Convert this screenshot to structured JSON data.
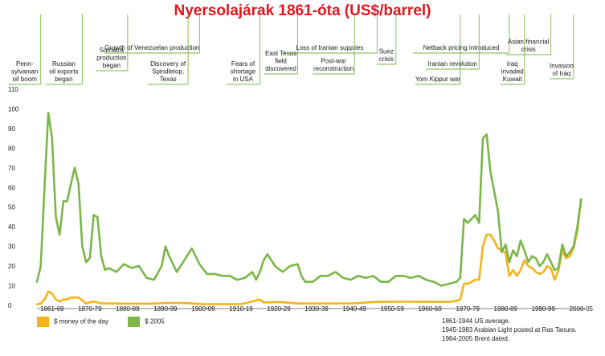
{
  "title": "Nyersolajárak 1861-óta (US$/barrel)",
  "colors": {
    "title": "#e2161c",
    "money_of_day": "#f5b21b",
    "usd_2005": "#7ab648",
    "annotation_line": "#7ab648"
  },
  "legend": [
    "$ money of the day",
    "$ 2005"
  ],
  "notes": [
    "1861-1944 US average.",
    "1945-1983 Arabian Light posted at Ras Tanura.",
    "1984-2005 Brent dated."
  ],
  "chart_data": {
    "type": "line",
    "title": "Nyersolajárak 1861-óta (US$/barrel)",
    "xlabel": "",
    "ylabel": "",
    "xlim": [
      1861,
      2006
    ],
    "ylim": [
      0,
      110
    ],
    "y_ticks": [
      0,
      10,
      20,
      30,
      40,
      50,
      60,
      70,
      80,
      90,
      100,
      110
    ],
    "x_tick_labels": [
      "1861-69",
      "1870-79",
      "1880-89",
      "1890-99",
      "1900-09",
      "1910-19",
      "1920-29",
      "1930-39",
      "1940-49",
      "1950-59",
      "1960-69",
      "1970-79",
      "1980-89",
      "1990-99",
      "2000-05"
    ],
    "grid": false,
    "legend_position": "bottom-left",
    "series": [
      {
        "name": "$ money of the day",
        "color": "#f5b21b",
        "x": [
          1861,
          1862,
          1863,
          1864,
          1865,
          1866,
          1867,
          1868,
          1869,
          1870,
          1872,
          1874,
          1876,
          1878,
          1880,
          1885,
          1890,
          1895,
          1900,
          1905,
          1910,
          1915,
          1918,
          1920,
          1921,
          1925,
          1930,
          1935,
          1940,
          1945,
          1950,
          1955,
          1960,
          1965,
          1970,
          1972,
          1973,
          1974,
          1975,
          1976,
          1977,
          1978,
          1979,
          1980,
          1981,
          1982,
          1983,
          1984,
          1985,
          1986,
          1987,
          1988,
          1989,
          1990,
          1991,
          1992,
          1993,
          1994,
          1995,
          1996,
          1997,
          1998,
          1999,
          2000,
          2001,
          2002,
          2003,
          2004,
          2005
        ],
        "y": [
          0.5,
          1,
          3,
          7,
          6,
          3,
          2,
          3,
          3,
          4,
          4,
          1,
          2,
          1,
          1,
          0.9,
          0.8,
          1.2,
          1.2,
          0.6,
          0.6,
          0.6,
          2,
          3,
          1.5,
          1.7,
          1,
          1,
          1,
          1.05,
          1.7,
          1.9,
          1.9,
          1.8,
          1.8,
          2.3,
          3,
          11,
          11,
          12,
          13,
          13,
          30,
          36,
          36,
          33,
          29,
          28,
          27,
          15,
          18,
          15,
          18,
          23,
          20,
          19,
          17,
          16,
          17,
          20,
          19,
          13,
          18,
          28,
          24,
          25,
          29,
          38,
          54
        ]
      },
      {
        "name": "$ 2005",
        "color": "#7ab648",
        "x": [
          1861,
          1862,
          1863,
          1864,
          1865,
          1866,
          1867,
          1868,
          1869,
          1870,
          1871,
          1872,
          1873,
          1874,
          1875,
          1876,
          1877,
          1878,
          1879,
          1880,
          1882,
          1884,
          1886,
          1888,
          1890,
          1892,
          1894,
          1895,
          1896,
          1898,
          1900,
          1902,
          1904,
          1906,
          1908,
          1910,
          1912,
          1914,
          1916,
          1918,
          1919,
          1920,
          1921,
          1922,
          1924,
          1926,
          1928,
          1930,
          1931,
          1932,
          1934,
          1936,
          1938,
          1940,
          1942,
          1944,
          1946,
          1948,
          1950,
          1952,
          1954,
          1956,
          1958,
          1960,
          1962,
          1964,
          1966,
          1968,
          1970,
          1972,
          1973,
          1974,
          1975,
          1976,
          1977,
          1978,
          1979,
          1980,
          1981,
          1982,
          1983,
          1984,
          1985,
          1986,
          1987,
          1988,
          1989,
          1990,
          1991,
          1992,
          1993,
          1994,
          1995,
          1996,
          1997,
          1998,
          1999,
          2000,
          2001,
          2002,
          2003,
          2004,
          2005
        ],
        "y": [
          12,
          20,
          60,
          98,
          85,
          45,
          36,
          53,
          53,
          62,
          70,
          62,
          30,
          22,
          24,
          46,
          45,
          25,
          18,
          19,
          17,
          21,
          19,
          20,
          14,
          13,
          20,
          30,
          25,
          17,
          23,
          29,
          21,
          16,
          16,
          15,
          15,
          13,
          14,
          17,
          13,
          17,
          23,
          26,
          20,
          17,
          20,
          21,
          15,
          12,
          12,
          15,
          15,
          17,
          14,
          13,
          15,
          14,
          15,
          12,
          12,
          15,
          15,
          14,
          15,
          13,
          12,
          10,
          11,
          12,
          14,
          44,
          42,
          44,
          46,
          42,
          85,
          87,
          68,
          58,
          48,
          27,
          31,
          22,
          28,
          25,
          33,
          28,
          22,
          25,
          24,
          20,
          22,
          26,
          22,
          18,
          19,
          31,
          25,
          27,
          30,
          40,
          54
        ]
      }
    ],
    "annotations": [
      {
        "text": [
          "Penn-",
          "sylvanian",
          "oil boom"
        ],
        "year": 1862
      },
      {
        "text": [
          "Russian",
          "oil exports",
          "began"
        ],
        "year": 1873
      },
      {
        "text": [
          "Sumatra",
          "production",
          "began"
        ],
        "year": 1885
      },
      {
        "text": [
          "Discovery of",
          "Spindletop,",
          "Texas"
        ],
        "year": 1901
      },
      {
        "text": [
          "Growth of Venezuelan production"
        ],
        "year": 1904
      },
      {
        "text": [
          "Fears of",
          "shortage",
          "in USA"
        ],
        "year": 1920
      },
      {
        "text": [
          "East Texas",
          "field",
          "discovered"
        ],
        "year": 1930
      },
      {
        "text": [
          "Loss of Iranian supplies"
        ],
        "year": 1951
      },
      {
        "text": [
          "Post-war",
          "reconstruction"
        ],
        "year": 1945
      },
      {
        "text": [
          "Suez",
          "crisis"
        ],
        "year": 1956
      },
      {
        "text": [
          "Yom Kippur war"
        ],
        "year": 1973
      },
      {
        "text": [
          "Netback pricing introduced"
        ],
        "year": 1986
      },
      {
        "text": [
          "Iranian revolution"
        ],
        "year": 1978
      },
      {
        "text": [
          "Asian financial",
          "crisis"
        ],
        "year": 1997
      },
      {
        "text": [
          "Iraq",
          "invaded",
          "Kuwait"
        ],
        "year": 1990
      },
      {
        "text": [
          "Invasion",
          "of Iraq"
        ],
        "year": 2003
      }
    ]
  }
}
